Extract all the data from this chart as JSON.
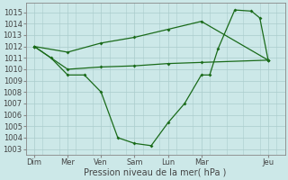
{
  "background_color": "#cce8e8",
  "grid_color": "#aacccc",
  "line_color": "#1a6b1a",
  "x_labels": [
    "Dim",
    "Mer",
    "Ven",
    "Sam",
    "Lun",
    "Mar",
    "Jeu"
  ],
  "x_tick_pos": [
    0,
    2,
    4,
    6,
    8,
    10,
    14
  ],
  "ylabel": "Pression niveau de la mer( hPa )",
  "ylim": [
    1002.5,
    1015.8
  ],
  "yticks": [
    1003,
    1004,
    1005,
    1006,
    1007,
    1008,
    1009,
    1010,
    1011,
    1012,
    1013,
    1014,
    1015
  ],
  "xlim": [
    -0.5,
    15.0
  ],
  "series1_x": [
    0,
    1,
    2,
    3,
    4,
    5,
    6,
    7,
    8,
    9,
    10,
    10.5,
    11,
    12,
    13,
    13.5,
    14
  ],
  "series1_y": [
    1012.0,
    1011.0,
    1009.5,
    1009.5,
    1008.0,
    1004.0,
    1003.5,
    1003.3,
    1005.3,
    1007.0,
    1009.5,
    1009.5,
    1011.8,
    1015.2,
    1015.1,
    1014.5,
    1010.8
  ],
  "series2_x": [
    0,
    2,
    4,
    6,
    8,
    10,
    14
  ],
  "series2_y": [
    1012.0,
    1011.5,
    1012.3,
    1012.8,
    1013.5,
    1014.2,
    1010.8
  ],
  "series3_x": [
    0,
    2,
    4,
    6,
    8,
    10,
    14
  ],
  "series3_y": [
    1012.0,
    1010.0,
    1010.2,
    1010.3,
    1010.5,
    1010.6,
    1010.8
  ],
  "ylabel_fontsize": 7.0,
  "tick_fontsize": 6.0,
  "figsize": [
    3.2,
    2.0
  ],
  "dpi": 100
}
